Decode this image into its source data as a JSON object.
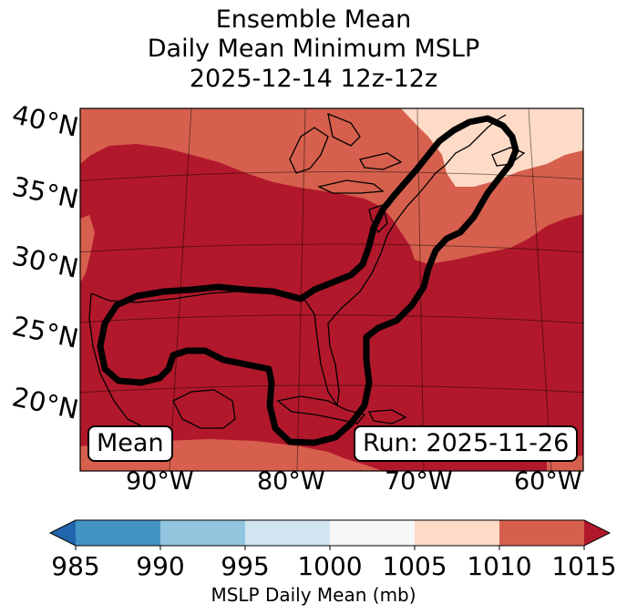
{
  "title": {
    "line1": "Ensemble Mean",
    "line2": "Daily Mean Minimum MSLP",
    "line3": "2025-12-14 12z-12z"
  },
  "map": {
    "lat_labels": [
      "40°N",
      "35°N",
      "30°N",
      "25°N",
      "20°N"
    ],
    "lon_labels": [
      "90°W",
      "80°W",
      "70°W",
      "60°W"
    ],
    "mean_label": "Mean",
    "run_label": "Run: 2025-11-26",
    "colors": {
      "c1005_1010": "#fddbc7",
      "c1010_1015": "#d6604d",
      "c1015_plus": "#b2182b",
      "land": "#b2182b",
      "contour": "#000000"
    }
  },
  "colorbar": {
    "ticks": [
      "985",
      "990",
      "995",
      "1000",
      "1005",
      "1010",
      "1015"
    ],
    "colors": [
      "#4393c3",
      "#92c5de",
      "#d1e5f0",
      "#f7f7f7",
      "#fddbc7",
      "#d6604d"
    ],
    "under_color": "#2166ac",
    "over_color": "#b2182b",
    "label": "MSLP Daily Mean (mb)"
  }
}
